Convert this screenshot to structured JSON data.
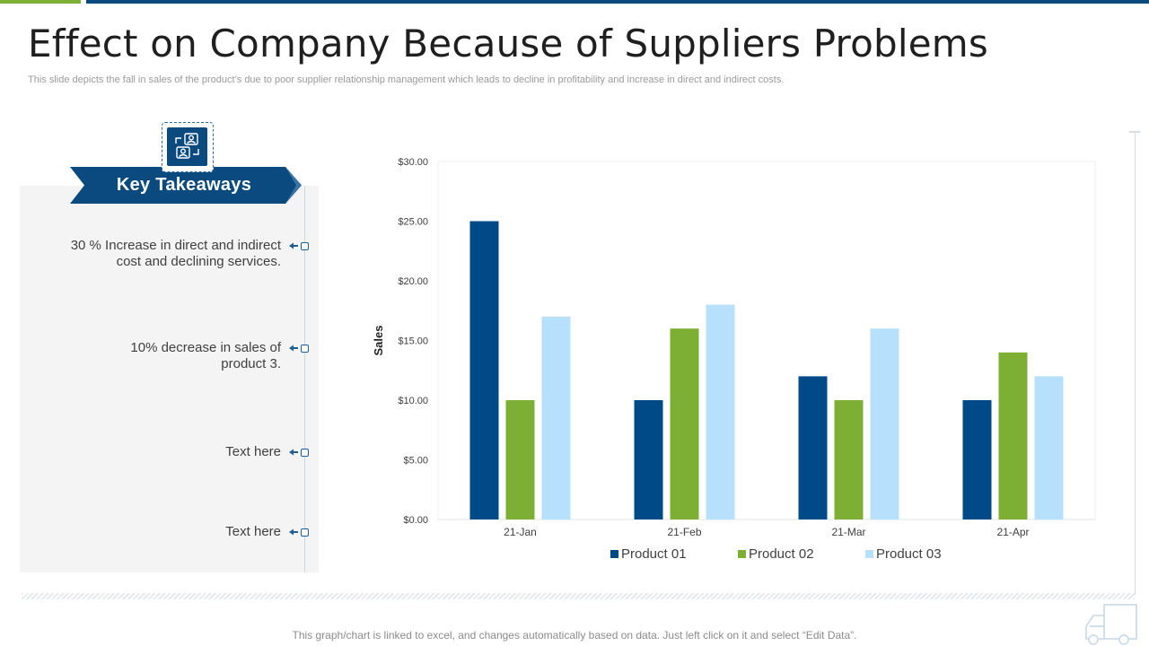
{
  "slide": {
    "title": "Effect on Company Because of Suppliers Problems",
    "subtitle": "This slide depicts the fall in sales of the product’s due to poor supplier relationship management which leads to decline in profitability and increase in direct and indirect costs.",
    "footer": "This graph/chart is linked to excel, and changes automatically based on data. Just left click on it and select “Edit Data”."
  },
  "takeaways": {
    "heading": "Key Takeaways",
    "icon": "people-exchange-icon",
    "items": [
      {
        "line1": "30 % Increase in direct and indirect",
        "line2": "cost and declining services."
      },
      {
        "line1": "10% decrease in sales of",
        "line2": "product 3."
      },
      {
        "line1": "Text here",
        "line2": ""
      },
      {
        "line1": "Text here",
        "line2": ""
      }
    ]
  },
  "colors": {
    "accent_blue": "#0b4a7f",
    "accent_green": "#7fb036",
    "series": [
      "#004b87",
      "#7daf35",
      "#b6e0fb"
    ]
  },
  "chart_data": {
    "type": "bar",
    "categories": [
      "21-Jan",
      "21-Feb",
      "21-Mar",
      "21-Apr"
    ],
    "series": [
      {
        "name": "Product 01",
        "values": [
          25,
          10,
          12,
          10
        ]
      },
      {
        "name": "Product 02",
        "values": [
          10,
          16,
          10,
          14
        ]
      },
      {
        "name": "Product 03",
        "values": [
          17,
          18,
          16,
          12
        ]
      }
    ],
    "ylabel": "Sales",
    "ylim": [
      0,
      30
    ],
    "yticks": [
      "$0.00",
      "$5.00",
      "$10.00",
      "$15.00",
      "$20.00",
      "$25.00",
      "$30.00"
    ],
    "ytick_values": [
      0,
      5,
      10,
      15,
      20,
      25,
      30
    ],
    "grid": false,
    "legend": "bottom"
  }
}
